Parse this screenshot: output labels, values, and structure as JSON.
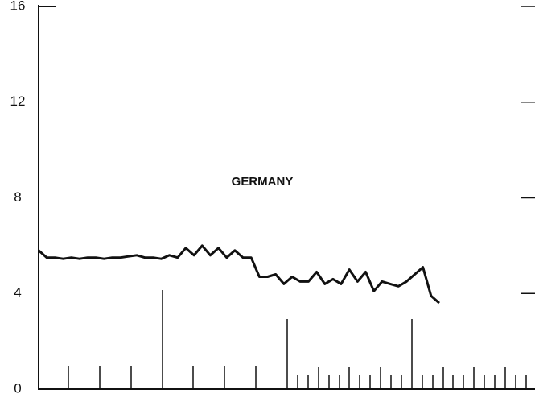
{
  "chart_data": {
    "type": "line",
    "annotations": [
      "GERMANY"
    ],
    "categories": [
      null,
      null,
      null,
      null,
      null,
      null,
      null,
      null,
      null,
      null,
      null,
      null,
      null,
      null,
      null,
      null,
      null,
      null,
      null,
      null,
      null,
      null,
      null,
      null,
      null,
      null,
      null,
      null,
      null,
      null,
      null,
      null,
      null,
      null,
      null,
      null,
      null,
      null,
      null,
      null,
      null,
      null,
      null,
      null,
      null,
      null,
      null,
      null,
      null,
      null
    ],
    "series": [
      {
        "color": "#111111",
        "values": [
          5.8,
          5.5,
          5.5,
          5.45,
          5.5,
          5.45,
          5.5,
          5.5,
          5.45,
          5.5,
          5.5,
          5.55,
          5.6,
          5.5,
          5.5,
          5.45,
          5.6,
          5.5,
          5.9,
          5.6,
          6.0,
          5.6,
          5.9,
          5.5,
          5.8,
          5.5,
          5.5,
          4.7,
          4.7,
          4.8,
          4.4,
          4.7,
          4.5,
          4.5,
          4.9,
          4.4,
          4.6,
          4.4,
          5.0,
          4.5,
          4.9,
          4.1,
          4.5,
          4.4,
          4.3,
          4.5,
          4.8,
          5.1,
          3.9,
          3.6
        ]
      }
    ],
    "ylim": [
      0,
      16
    ],
    "yticks": [
      0,
      4,
      8,
      12,
      16
    ]
  }
}
